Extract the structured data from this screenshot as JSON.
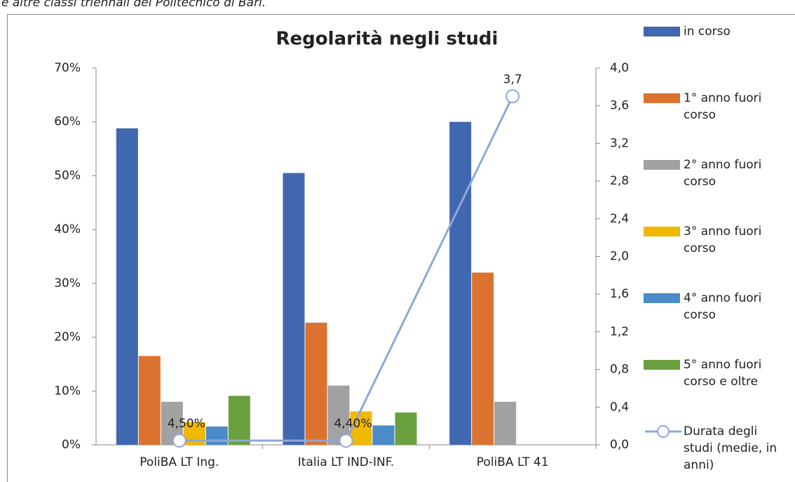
{
  "header": "e altre classi triennali del Politecnico di Bari.",
  "chart_data": {
    "type": "bar",
    "title": "Regolarità negli studi",
    "categories": [
      "PoliBA LT Ing.",
      "Italia LT IND-INF.",
      "PoliBA LT 41"
    ],
    "series": [
      {
        "name": "in corso",
        "color": "#4068b0",
        "values": [
          58.8,
          50.5,
          60
        ]
      },
      {
        "name": "1° anno fuori corso",
        "color": "#dc7230",
        "values": [
          16.5,
          22.7,
          32
        ]
      },
      {
        "name": "2° anno fuori corso",
        "color": "#a2a2a2",
        "values": [
          8,
          11,
          8
        ]
      },
      {
        "name": "3° anno fuori corso",
        "color": "#f1b800",
        "values": [
          4.2,
          6.2,
          null
        ]
      },
      {
        "name": "4° anno fuori corso",
        "color": "#4b8bc8",
        "values": [
          3.4,
          3.6,
          null
        ]
      },
      {
        "name": "5° anno fuori corso e oltre",
        "color": "#6aa13e",
        "values": [
          9.1,
          6.0,
          null
        ]
      },
      {
        "name": "Durata degli studi (medie, in anni)",
        "color": "#8fa7d8",
        "type": "line",
        "axis": "y2",
        "values": [
          0.045,
          0.044,
          3.7
        ],
        "value_labels": [
          "4,50%",
          "4,40%",
          "3,7"
        ]
      }
    ],
    "ylim": [
      0,
      70
    ],
    "yticks": [
      {
        "value": 0,
        "label": "0%"
      },
      {
        "value": 10,
        "label": "10%"
      },
      {
        "value": 20,
        "label": "20%"
      },
      {
        "value": 30,
        "label": "30%"
      },
      {
        "value": 40,
        "label": "40%"
      },
      {
        "value": 50,
        "label": "50%"
      },
      {
        "value": 60,
        "label": "60%"
      },
      {
        "value": 70,
        "label": "70%"
      }
    ],
    "y2lim": [
      0,
      4
    ],
    "y2ticks": [
      {
        "value": 0,
        "label": "0,0"
      },
      {
        "value": 0.4,
        "label": "0,4"
      },
      {
        "value": 0.8,
        "label": "0,8"
      },
      {
        "value": 1.2,
        "label": "1,2"
      },
      {
        "value": 1.6,
        "label": "1,6"
      },
      {
        "value": 2.0,
        "label": "2,0"
      },
      {
        "value": 2.4,
        "label": "2,4"
      },
      {
        "value": 2.8,
        "label": "2,8"
      },
      {
        "value": 3.2,
        "label": "3,2"
      },
      {
        "value": 3.6,
        "label": "3,6"
      },
      {
        "value": 4.0,
        "label": "4,0"
      }
    ],
    "legend": "right"
  }
}
